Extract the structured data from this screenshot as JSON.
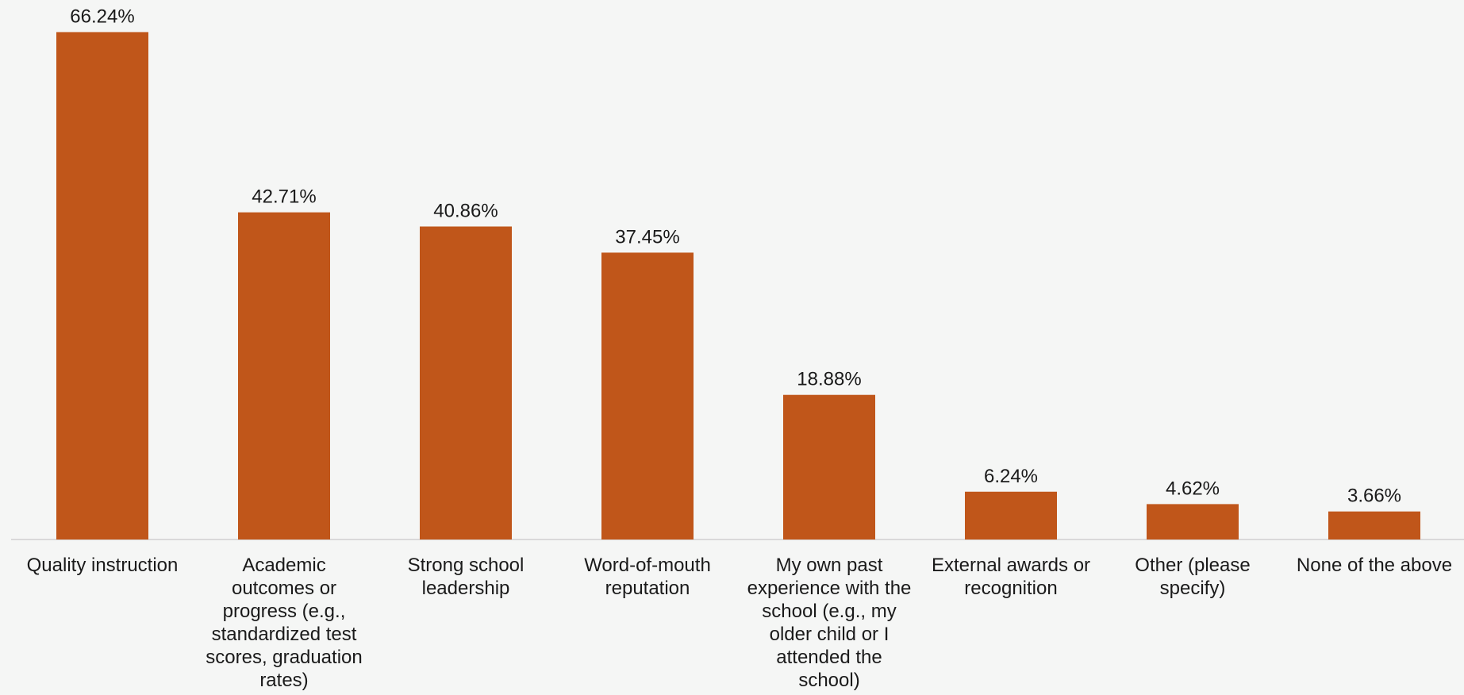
{
  "chart_data": {
    "type": "bar",
    "title": "",
    "xlabel": "",
    "ylabel": "",
    "ylim": [
      0,
      70
    ],
    "grid": false,
    "legend": "none",
    "bar_color": "#c0561a",
    "axis_color": "#d9d9d9",
    "categories": [
      "Quality instruction",
      "Academic outcomes or progress (e.g., standardized test scores, graduation rates)",
      "Strong school leadership",
      "Word-of-mouth reputation",
      "My own past experience with the school (e.g., my older child or I attended the school)",
      "External awards or recognition",
      "Other (please specify)",
      "None of the above"
    ],
    "category_lines": [
      [
        "Quality instruction"
      ],
      [
        "Academic",
        "outcomes or",
        "progress (e.g.,",
        "standardized test",
        "scores, graduation",
        "rates)"
      ],
      [
        "Strong school",
        "leadership"
      ],
      [
        "Word-of-mouth",
        "reputation"
      ],
      [
        "My own past",
        "experience with the",
        "school (e.g., my",
        "older child or I",
        "attended the",
        "school)"
      ],
      [
        "External awards or",
        "recognition"
      ],
      [
        "Other (please",
        "specify)"
      ],
      [
        "None of the above"
      ]
    ],
    "values": [
      66.24,
      42.71,
      40.86,
      37.45,
      18.88,
      6.24,
      4.62,
      3.66
    ],
    "value_labels": [
      "66.24%",
      "42.71%",
      "40.86%",
      "37.45%",
      "18.88%",
      "6.24%",
      "4.62%",
      "3.66%"
    ]
  }
}
